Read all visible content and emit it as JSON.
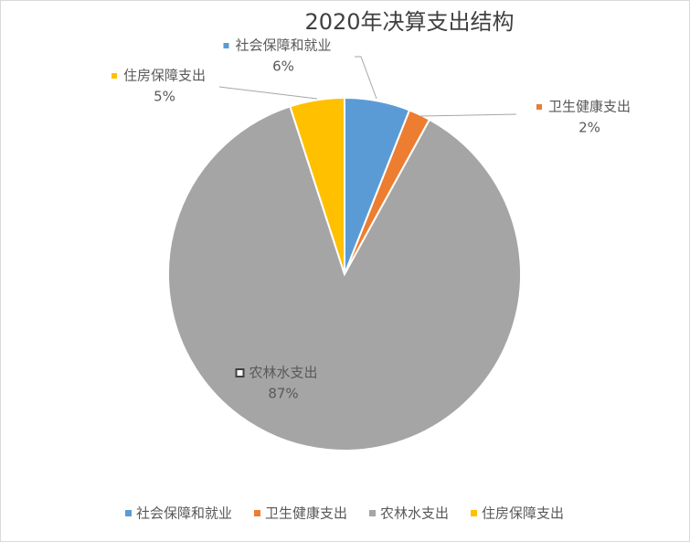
{
  "chart_data": {
    "type": "pie",
    "title": "2020年决算支出结构",
    "categories": [
      "社会保障和就业",
      "卫生健康支出",
      "农林水支出",
      "住房保障支出"
    ],
    "values": [
      6,
      2,
      87,
      5
    ],
    "value_labels": [
      "6%",
      "2%",
      "87%",
      "5%"
    ],
    "colors": [
      "#5b9bd5",
      "#ed7d31",
      "#a5a5a5",
      "#ffc000"
    ],
    "legend": "bottom"
  }
}
